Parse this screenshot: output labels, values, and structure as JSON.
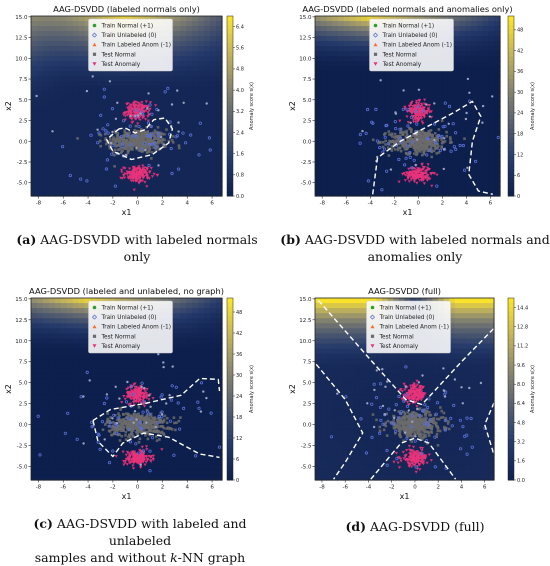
{
  "colors": {
    "train_normal": "#2ca02c",
    "train_unlabeled": "#5a6fd6",
    "train_anom": "#ff6a2a",
    "test_normal": "#6b6b6b",
    "test_anomaly": "#e8337a",
    "cmap": [
      "#0d1f4d",
      "#253a6b",
      "#565f70",
      "#8a8770",
      "#c7b65a",
      "#fde725"
    ]
  },
  "captions": {
    "a": {
      "tag": "(a)",
      "text": "AAG-DSVDD with labeled normals only"
    },
    "b": {
      "tag": "(b)",
      "line1": "AAG-DSVDD with labeled normals and",
      "line2": "anomalies only"
    },
    "c": {
      "tag": "(c)",
      "line1a": "AAG-DSVDD with labeled and unlabeled",
      "line2a": "samples and without ",
      "k": "k",
      "line2b": "-NN graph"
    },
    "d": {
      "tag": "(d)",
      "text": "AAG-DSVDD (full)"
    }
  },
  "chart_data": [
    {
      "type": "scatter",
      "panel": "a",
      "title": "AAG-DSVDD (labeled normals only)",
      "xlabel": "x1",
      "ylabel": "x2",
      "xlim": [
        -8.6,
        6.8
      ],
      "ylim": [
        -6.6,
        15.1
      ],
      "xticks": [
        -8,
        -6,
        -4,
        -2,
        0,
        2,
        4,
        6
      ],
      "yticks": [
        -5.0,
        -2.5,
        0.0,
        2.5,
        5.0,
        7.5,
        10.0,
        12.5,
        15.0
      ],
      "legend": [
        "Train Normal (+1)",
        "Train Unlabeled (0)",
        "Train Labeled Anom (-1)",
        "Test Normal",
        "Test Anomaly"
      ],
      "legend_position": "top-center",
      "colorbar": {
        "label": "Anomaly score s(x)",
        "ticks": [
          "0.0",
          "0.8",
          "1.6",
          "2.4",
          "3.2",
          "4.0",
          "4.8",
          "5.6",
          "6.4"
        ],
        "min": 0,
        "max": 6.8
      },
      "series": [
        {
          "name": "Test Normal",
          "clusters": [
            {
              "center": [
                0.0,
                0.0
              ],
              "spread": [
                2.0,
                1.2
              ],
              "count": 420
            }
          ]
        },
        {
          "name": "Test Anomaly",
          "clusters": [
            {
              "center": [
                0.0,
                3.6
              ],
              "spread": [
                0.8,
                0.9
              ],
              "count": 160
            },
            {
              "center": [
                0.0,
                -4.0
              ],
              "spread": [
                0.9,
                0.8
              ],
              "count": 160
            }
          ]
        }
      ],
      "boundary": [
        [
          [
            -1.5,
            1.5
          ],
          [
            -2.5,
            0.2
          ],
          [
            -2.0,
            -1.2
          ],
          [
            -0.5,
            -2.2
          ],
          [
            1.2,
            -1.6
          ],
          [
            2.5,
            -0.2
          ],
          [
            2.8,
            1.5
          ],
          [
            2.2,
            2.8
          ],
          [
            1.3,
            2.6
          ],
          [
            0.6,
            1.4
          ],
          [
            -0.2,
            1.0
          ],
          [
            -1.0,
            1.6
          ],
          [
            -1.5,
            1.5
          ]
        ]
      ]
    },
    {
      "type": "scatter",
      "panel": "b",
      "title": "AAG-DSVDD (labeled normals and anomalies only)",
      "xlabel": "x1",
      "ylabel": "x2",
      "xlim": [
        -8.6,
        6.8
      ],
      "ylim": [
        -6.6,
        15.1
      ],
      "xticks": [
        -8,
        -6,
        -4,
        -2,
        0,
        2,
        4,
        6
      ],
      "yticks": [
        -5.0,
        -2.5,
        0.0,
        2.5,
        5.0,
        7.5,
        10.0,
        12.5,
        15.0
      ],
      "legend": [
        "Train Normal (+1)",
        "Train Unlabeled (0)",
        "Train Labeled Anom (-1)",
        "Test Normal",
        "Test Anomaly"
      ],
      "legend_position": "top-center",
      "colorbar": {
        "label": "Anomaly score s(x)",
        "ticks": [
          "0",
          "6",
          "12",
          "18",
          "24",
          "30",
          "36",
          "42",
          "48"
        ],
        "min": 0,
        "max": 52
      },
      "series": [
        {
          "name": "Test Normal",
          "clusters": [
            {
              "center": [
                0.0,
                0.0
              ],
              "spread": [
                2.0,
                1.2
              ],
              "count": 420
            }
          ]
        },
        {
          "name": "Test Anomaly",
          "clusters": [
            {
              "center": [
                0.0,
                3.6
              ],
              "spread": [
                0.8,
                0.9
              ],
              "count": 160
            },
            {
              "center": [
                0.0,
                -4.0
              ],
              "spread": [
                0.9,
                0.8
              ],
              "count": 160
            }
          ]
        }
      ],
      "boundary": [
        [
          [
            -3.8,
            -6.4
          ],
          [
            -3.4,
            -2.0
          ],
          [
            -1.5,
            0.0
          ],
          [
            0.8,
            1.8
          ],
          [
            3.0,
            3.5
          ],
          [
            4.5,
            4.8
          ],
          [
            5.2,
            3.0
          ],
          [
            4.5,
            0.0
          ],
          [
            4.2,
            -4.0
          ],
          [
            5.0,
            -6.0
          ],
          [
            6.2,
            -6.4
          ]
        ]
      ]
    },
    {
      "type": "scatter",
      "panel": "c",
      "title": "AAG-DSVDD (labeled and unlabeled, no graph)",
      "xlabel": "x1",
      "ylabel": "x2",
      "xlim": [
        -8.6,
        6.8
      ],
      "ylim": [
        -6.6,
        15.1
      ],
      "xticks": [
        -8,
        -6,
        -4,
        -2,
        0,
        2,
        4,
        6
      ],
      "yticks": [
        -5.0,
        -2.5,
        0.0,
        2.5,
        5.0,
        7.5,
        10.0,
        12.5,
        15.0
      ],
      "legend": [
        "Train Normal (+1)",
        "Train Unlabeled (0)",
        "Train Labeled Anom (-1)",
        "Test Normal",
        "Test Anomaly"
      ],
      "legend_position": "top-center",
      "colorbar": {
        "label": "Anomaly score s(x)",
        "ticks": [
          "0",
          "6",
          "12",
          "18",
          "24",
          "30",
          "36",
          "42",
          "48"
        ],
        "min": 0,
        "max": 52
      },
      "series": [
        {
          "name": "Test Normal",
          "clusters": [
            {
              "center": [
                0.0,
                0.0
              ],
              "spread": [
                2.0,
                1.2
              ],
              "count": 420
            }
          ]
        },
        {
          "name": "Test Anomaly",
          "clusters": [
            {
              "center": [
                0.0,
                3.6
              ],
              "spread": [
                0.8,
                0.9
              ],
              "count": 160
            },
            {
              "center": [
                0.0,
                -4.0
              ],
              "spread": [
                0.9,
                0.8
              ],
              "count": 160
            }
          ]
        }
      ],
      "boundary": [
        [
          [
            -3.6,
            0.5
          ],
          [
            -3.2,
            -2.0
          ],
          [
            -2.0,
            -3.8
          ],
          [
            -1.2,
            -2.2
          ],
          [
            0.5,
            -1.0
          ],
          [
            2.5,
            -1.5
          ],
          [
            5.0,
            -3.5
          ],
          [
            6.6,
            -3.9
          ]
        ],
        [
          [
            -3.6,
            0.5
          ],
          [
            -2.2,
            1.8
          ],
          [
            0.5,
            2.5
          ],
          [
            3.5,
            3.5
          ],
          [
            5.0,
            5.5
          ],
          [
            6.5,
            5.4
          ],
          [
            6.6,
            4.0
          ]
        ]
      ]
    },
    {
      "type": "scatter",
      "panel": "d",
      "title": "AAG-DSVDD (full)",
      "xlabel": "x1",
      "ylabel": "x2",
      "xlim": [
        -8.6,
        6.8
      ],
      "ylim": [
        -6.6,
        15.1
      ],
      "xticks": [
        -8,
        -6,
        -4,
        -2,
        0,
        2,
        4,
        6
      ],
      "yticks": [
        -5.0,
        -2.5,
        0.0,
        2.5,
        5.0,
        7.5,
        10.0,
        12.5,
        15.0
      ],
      "legend": [
        "Train Normal (+1)",
        "Train Unlabeled (0)",
        "Train Labeled Anom (-1)",
        "Test Normal",
        "Test Anomaly"
      ],
      "legend_position": "top-center",
      "colorbar": {
        "label": "Anomaly score s(x)",
        "ticks": [
          "0.0",
          "1.6",
          "3.2",
          "4.8",
          "6.4",
          "8.0",
          "9.6",
          "11.2",
          "12.8",
          "14.4"
        ],
        "min": 0,
        "max": 15.2
      },
      "series": [
        {
          "name": "Test Normal",
          "clusters": [
            {
              "center": [
                0.0,
                0.0
              ],
              "spread": [
                2.0,
                1.2
              ],
              "count": 420
            }
          ]
        },
        {
          "name": "Test Anomaly",
          "clusters": [
            {
              "center": [
                0.0,
                3.6
              ],
              "spread": [
                0.8,
                0.9
              ],
              "count": 160
            },
            {
              "center": [
                0.0,
                -4.0
              ],
              "spread": [
                0.9,
                0.8
              ],
              "count": 160
            }
          ]
        }
      ],
      "boundary": [
        [
          [
            -8.3,
            14.8
          ],
          [
            -4.0,
            8.0
          ],
          [
            -0.8,
            3.0
          ],
          [
            0.6,
            2.4
          ],
          [
            4.0,
            7.5
          ],
          [
            6.8,
            11.5
          ]
        ],
        [
          [
            -8.5,
            7.2
          ],
          [
            -6.0,
            3.0
          ],
          [
            -4.5,
            -1.0
          ],
          [
            -6.0,
            -4.5
          ],
          [
            -7.0,
            -6.5
          ]
        ],
        [
          [
            -3.8,
            -6.5
          ],
          [
            -1.2,
            -2.2
          ],
          [
            0.0,
            -1.6
          ],
          [
            1.2,
            -2.2
          ],
          [
            3.5,
            -6.5
          ]
        ],
        [
          [
            6.8,
            2.6
          ],
          [
            6.0,
            0.0
          ],
          [
            6.8,
            -3.6
          ]
        ]
      ]
    }
  ]
}
